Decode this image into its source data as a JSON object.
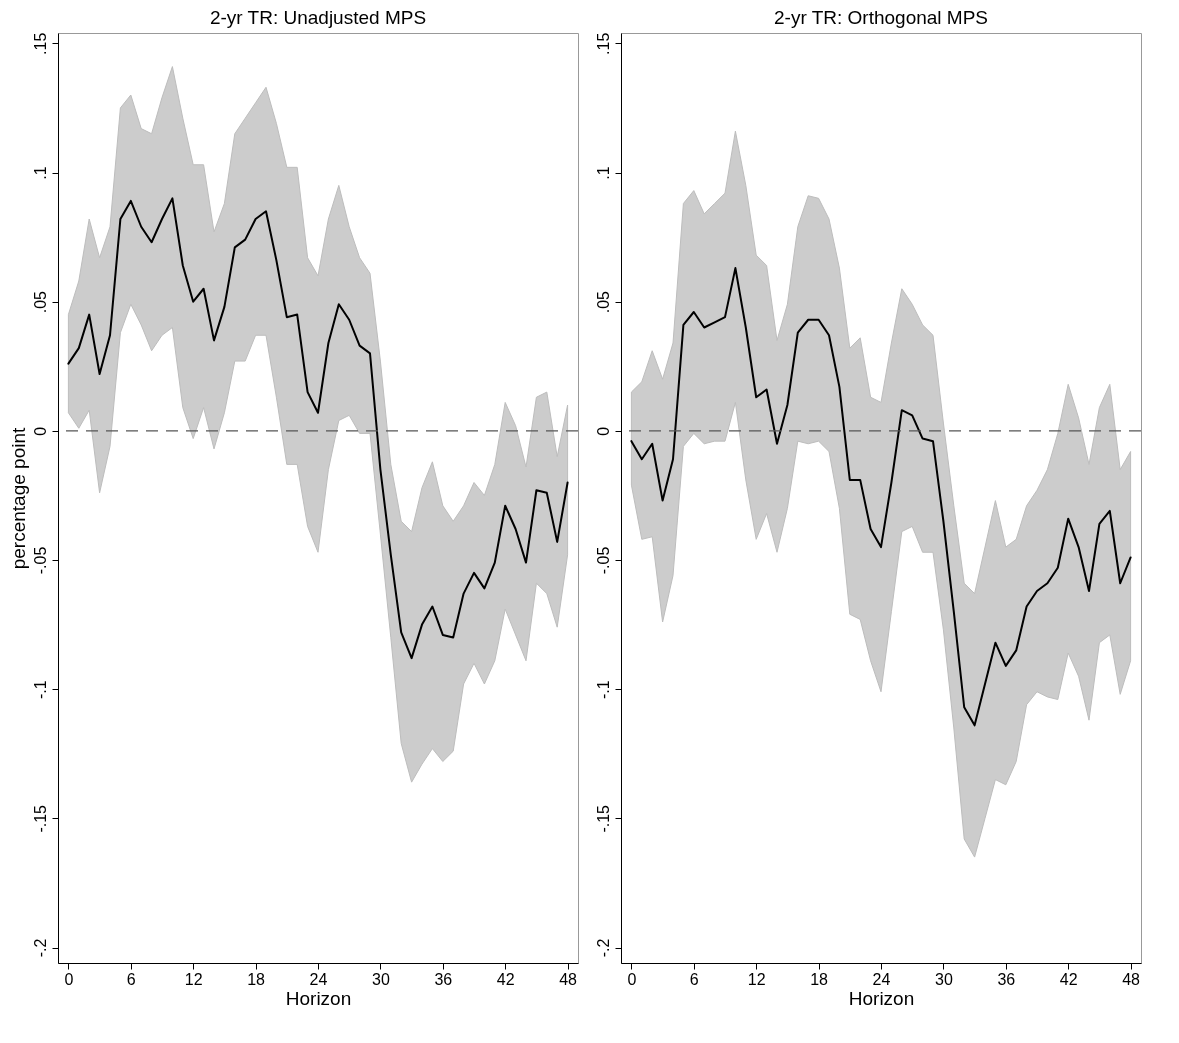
{
  "chart_data": [
    {
      "type": "line",
      "title": "2-yr TR: Unadjusted MPS",
      "xlabel": "Horizon",
      "ylabel": "percentage point",
      "x": [
        0,
        1,
        2,
        3,
        4,
        5,
        6,
        7,
        8,
        9,
        10,
        11,
        12,
        13,
        14,
        15,
        16,
        17,
        18,
        19,
        20,
        21,
        22,
        23,
        24,
        25,
        26,
        27,
        28,
        29,
        30,
        31,
        32,
        33,
        34,
        35,
        36,
        37,
        38,
        39,
        40,
        41,
        42,
        43,
        44,
        45,
        46,
        47,
        48
      ],
      "series": [
        {
          "color": "#000000",
          "values": [
            0.026,
            0.032,
            0.045,
            0.022,
            0.037,
            0.082,
            0.089,
            0.079,
            0.073,
            0.082,
            0.09,
            0.064,
            0.05,
            0.055,
            0.035,
            0.048,
            0.071,
            0.074,
            0.082,
            0.085,
            0.066,
            0.044,
            0.045,
            0.015,
            0.007,
            0.034,
            0.049,
            0.043,
            0.033,
            0.03,
            -0.015,
            -0.048,
            -0.078,
            -0.088,
            -0.075,
            -0.068,
            -0.079,
            -0.08,
            -0.063,
            -0.055,
            -0.061,
            -0.051,
            -0.029,
            -0.038,
            -0.051,
            -0.023,
            -0.024,
            -0.043,
            -0.02
          ],
          "upper": [
            0.045,
            0.058,
            0.082,
            0.067,
            0.079,
            0.125,
            0.13,
            0.117,
            0.115,
            0.129,
            0.141,
            0.121,
            0.103,
            0.103,
            0.077,
            0.088,
            0.115,
            0.121,
            0.127,
            0.133,
            0.119,
            0.102,
            0.102,
            0.067,
            0.06,
            0.082,
            0.095,
            0.079,
            0.067,
            0.061,
            0.027,
            -0.013,
            -0.035,
            -0.039,
            -0.022,
            -0.012,
            -0.029,
            -0.035,
            -0.029,
            -0.02,
            -0.025,
            -0.013,
            0.011,
            0.002,
            -0.014,
            0.013,
            0.015,
            -0.01,
            0.01
          ],
          "lower": [
            0.007,
            0.001,
            0.008,
            -0.024,
            -0.006,
            0.038,
            0.049,
            0.041,
            0.031,
            0.037,
            0.04,
            0.009,
            -0.003,
            0.009,
            -0.007,
            0.007,
            0.027,
            0.027,
            0.037,
            0.037,
            0.013,
            -0.013,
            -0.013,
            -0.037,
            -0.047,
            -0.015,
            0.004,
            0.006,
            -0.001,
            -0.001,
            -0.04,
            -0.08,
            -0.121,
            -0.136,
            -0.129,
            -0.123,
            -0.128,
            -0.124,
            -0.098,
            -0.09,
            -0.098,
            -0.089,
            -0.069,
            -0.079,
            -0.089,
            -0.059,
            -0.063,
            -0.076,
            -0.048
          ]
        }
      ],
      "xlim": [
        -1,
        49
      ],
      "xticks": [
        0,
        6,
        12,
        18,
        24,
        30,
        36,
        42,
        48
      ],
      "ylim": [
        -0.206,
        0.154
      ],
      "yticks": [
        {
          "value": -0.2,
          "label": "-.2"
        },
        {
          "value": -0.15,
          "label": "-.15"
        },
        {
          "value": -0.1,
          "label": "-.1"
        },
        {
          "value": -0.05,
          "label": "-.05"
        },
        0,
        {
          "value": 0.05,
          "label": ".05"
        },
        {
          "value": 0.1,
          "label": ".1"
        },
        {
          "value": 0.15,
          "label": ".15"
        }
      ],
      "ref_lines": [
        {
          "axis": "y",
          "value": 0,
          "line_style": "dashed",
          "color": "#555555"
        }
      ]
    },
    {
      "type": "line",
      "title": "2-yr TR: Orthogonal MPS",
      "xlabel": "Horizon",
      "x": [
        0,
        1,
        2,
        3,
        4,
        5,
        6,
        7,
        8,
        9,
        10,
        11,
        12,
        13,
        14,
        15,
        16,
        17,
        18,
        19,
        20,
        21,
        22,
        23,
        24,
        25,
        26,
        27,
        28,
        29,
        30,
        31,
        32,
        33,
        34,
        35,
        36,
        37,
        38,
        39,
        40,
        41,
        42,
        43,
        44,
        45,
        46,
        47,
        48
      ],
      "series": [
        {
          "color": "#000000",
          "values": [
            -0.004,
            -0.011,
            -0.005,
            -0.027,
            -0.011,
            0.041,
            0.046,
            0.04,
            0.042,
            0.044,
            0.063,
            0.04,
            0.013,
            0.016,
            -0.005,
            0.01,
            0.038,
            0.043,
            0.043,
            0.037,
            0.017,
            -0.019,
            -0.019,
            -0.038,
            -0.045,
            -0.02,
            0.008,
            0.006,
            -0.003,
            -0.004,
            -0.035,
            -0.07,
            -0.107,
            -0.114,
            -0.098,
            -0.082,
            -0.091,
            -0.085,
            -0.068,
            -0.062,
            -0.059,
            -0.053,
            -0.034,
            -0.045,
            -0.062,
            -0.036,
            -0.031,
            -0.059,
            -0.049
          ],
          "upper": [
            0.015,
            0.019,
            0.031,
            0.02,
            0.034,
            0.088,
            0.093,
            0.084,
            0.088,
            0.092,
            0.116,
            0.095,
            0.068,
            0.064,
            0.035,
            0.049,
            0.079,
            0.091,
            0.09,
            0.082,
            0.063,
            0.032,
            0.036,
            0.013,
            0.011,
            0.034,
            0.055,
            0.049,
            0.041,
            0.037,
            0.003,
            -0.029,
            -0.059,
            -0.063,
            -0.045,
            -0.027,
            -0.045,
            -0.042,
            -0.029,
            -0.023,
            -0.015,
            -0.001,
            0.018,
            0.005,
            -0.013,
            0.009,
            0.018,
            -0.015,
            -0.008
          ],
          "lower": [
            -0.021,
            -0.042,
            -0.041,
            -0.074,
            -0.056,
            -0.006,
            -0.001,
            -0.005,
            -0.004,
            -0.004,
            0.011,
            -0.019,
            -0.042,
            -0.032,
            -0.047,
            -0.03,
            -0.004,
            -0.005,
            -0.004,
            -0.008,
            -0.03,
            -0.071,
            -0.073,
            -0.089,
            -0.101,
            -0.07,
            -0.039,
            -0.037,
            -0.047,
            -0.047,
            -0.077,
            -0.115,
            -0.158,
            -0.165,
            -0.15,
            -0.135,
            -0.137,
            -0.128,
            -0.106,
            -0.101,
            -0.103,
            -0.104,
            -0.086,
            -0.095,
            -0.112,
            -0.082,
            -0.079,
            -0.102,
            -0.089
          ]
        }
      ],
      "xlim": [
        -1,
        49
      ],
      "xticks": [
        0,
        6,
        12,
        18,
        24,
        30,
        36,
        42,
        48
      ],
      "ylim": [
        -0.206,
        0.154
      ],
      "yticks": [
        {
          "value": -0.2,
          "label": "-.2"
        },
        {
          "value": -0.15,
          "label": "-.15"
        },
        {
          "value": -0.1,
          "label": "-.1"
        },
        {
          "value": -0.05,
          "label": "-.05"
        },
        0,
        {
          "value": 0.05,
          "label": ".05"
        },
        {
          "value": 0.1,
          "label": ".1"
        },
        {
          "value": 0.15,
          "label": ".15"
        }
      ],
      "ref_lines": [
        {
          "axis": "y",
          "value": 0,
          "line_style": "dashed",
          "color": "#555555"
        }
      ]
    }
  ]
}
